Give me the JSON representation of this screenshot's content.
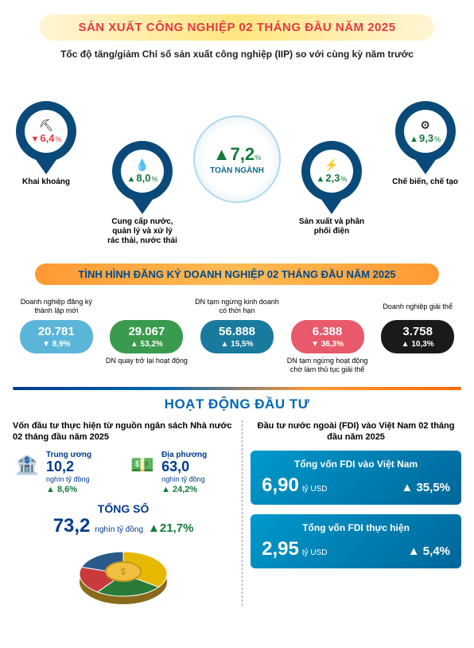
{
  "header": {
    "title": "SẢN XUẤT CÔNG NGHIỆP 02 THÁNG ĐẦU NĂM 2025"
  },
  "subtitle": "Tốc độ tăng/giảm Chỉ số sản xuất công nghiệp (IIP) so với cùng kỳ năm trước",
  "iip": {
    "center": {
      "value": "7,2",
      "pct": "%",
      "direction": "up",
      "label": "TOÀN NGÀNH"
    },
    "items": [
      {
        "value": "6,4",
        "pct": "%",
        "direction": "down",
        "label": "Khai khoáng",
        "color": "#e63946",
        "icon": "⛏",
        "pos": "p1"
      },
      {
        "value": "8,0",
        "pct": "%",
        "direction": "up",
        "label": "Cung cấp nước, quản lý và xử lý rác thải, nước thải",
        "color": "#147a3c",
        "icon": "💧",
        "pos": "p2"
      },
      {
        "value": "2,3",
        "pct": "%",
        "direction": "up",
        "label": "Sản xuất và phân phối điện",
        "color": "#147a3c",
        "icon": "⚡",
        "pos": "p3"
      },
      {
        "value": "9,3",
        "pct": "%",
        "direction": "up",
        "label": "Chế biến, chế tạo",
        "color": "#147a3c",
        "icon": "⚙",
        "pos": "p4"
      }
    ],
    "pin_colors": [
      "#0a4a7a",
      "#0a4a7a",
      "#0a4a7a",
      "#0a4a7a"
    ]
  },
  "biz_section": {
    "title": "TÌNH HÌNH ĐĂNG KÝ DOANH NGHIỆP 02 THÁNG ĐẦU NĂM 2025"
  },
  "biz": [
    {
      "label_top": "Doanh nghiệp đăng ký thành lập mới",
      "num": "20.781",
      "change": "8,9%",
      "dir": "down",
      "bg": "#5bb5d8",
      "label_bot": ""
    },
    {
      "label_top": "",
      "num": "29.067",
      "change": "53,2%",
      "dir": "up",
      "bg": "#3a9b4f",
      "label_bot": "DN quay trở lại hoạt động"
    },
    {
      "label_top": "DN tạm ngừng kinh doanh có thời hạn",
      "num": "56.888",
      "change": "15,5%",
      "dir": "up",
      "bg": "#1a7a9e",
      "label_bot": ""
    },
    {
      "label_top": "",
      "num": "6.388",
      "change": "36,3%",
      "dir": "down",
      "bg": "#e85a6b",
      "label_bot": "DN tạm ngừng hoạt động chờ làm thủ tục giải thể"
    },
    {
      "label_top": "Doanh nghiệp giải thể",
      "num": "3.758",
      "change": "10,3%",
      "dir": "up",
      "bg": "#1a1a1a",
      "label_bot": ""
    }
  ],
  "invest": {
    "title": "HOẠT ĐỘNG ĐẦU TƯ",
    "left_sub": "Vốn đầu tư thực hiện từ nguồn ngân sách Nhà nước 02 tháng đầu năm 2025",
    "right_sub": "Đầu tư nước ngoài (FDI) vào Việt Nam 02 tháng đầu năm 2025",
    "budget": [
      {
        "label": "Trung ương",
        "val": "10,2",
        "unit": "nghìn tỷ đồng",
        "change": "8,6%",
        "icon": "🏦"
      },
      {
        "label": "Địa phương",
        "val": "63,0",
        "unit": "nghìn tỷ đồng",
        "change": "24,2%",
        "icon": "💵"
      }
    ],
    "total": {
      "label": "TỔNG SỐ",
      "val": "73,2",
      "unit": "nghìn tỷ đồng",
      "change": "21,7%"
    },
    "pie": {
      "colors": [
        "#e6b800",
        "#2a7a3a",
        "#c93a3a",
        "#2a5a8a"
      ],
      "values": [
        35,
        25,
        20,
        20
      ]
    },
    "fdi": [
      {
        "label": "Tổng vốn FDI vào Việt Nam",
        "val": "6,90",
        "unit": "tỷ USD",
        "change": "35,5%"
      },
      {
        "label": "Tổng vốn FDI thực hiện",
        "val": "2,95",
        "unit": "tỷ USD",
        "change": "5,4%"
      }
    ]
  },
  "glyphs": {
    "up": "▲",
    "down": "▼"
  }
}
